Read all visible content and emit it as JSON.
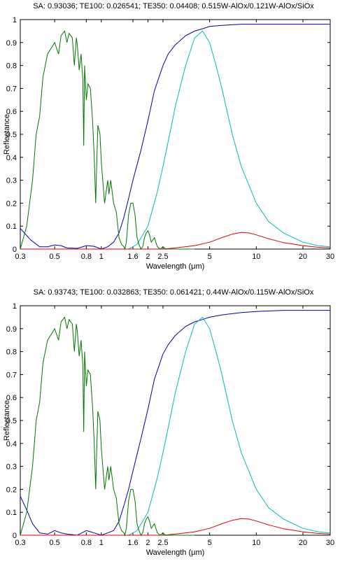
{
  "chart_data": [
    {
      "type": "line",
      "title": "SA: 0.93036; TE100: 0.026541; TE350: 0.04408; 0.515W-AlOx/0.121W-AlOx/SiOx",
      "xlabel": "Wavelength (μm)",
      "ylabel": "Reflectance",
      "xscale": "log",
      "xlim": [
        0.3,
        30
      ],
      "ylim": [
        0,
        1
      ],
      "xticks": [
        0.3,
        0.5,
        0.8,
        1,
        1.6,
        2,
        2.5,
        5,
        10,
        20,
        30
      ],
      "xticklabels": [
        "0.3",
        "0.5",
        "0.8",
        "1",
        "1.6",
        "2",
        "2.5",
        "5",
        "10",
        "20",
        "30"
      ],
      "yticks": [
        0,
        0.1,
        0.2,
        0.3,
        0.4,
        0.5,
        0.6,
        0.7,
        0.8,
        0.9,
        1
      ],
      "yticklabels": [
        "0",
        "0.1",
        "0.2",
        "0.3",
        "0.4",
        "0.5",
        "0.6",
        "0.7",
        "0.8",
        "0.9",
        "1"
      ],
      "grid": false,
      "series": [
        {
          "color": "#0000aa",
          "x": [
            0.3,
            0.35,
            0.4,
            0.45,
            0.5,
            0.55,
            0.6,
            0.7,
            0.8,
            0.9,
            1.0,
            1.1,
            1.2,
            1.3,
            1.4,
            1.5,
            1.6,
            1.8,
            2.0,
            2.2,
            2.5,
            2.7,
            3.0,
            3.5,
            4.0,
            4.5,
            5.0,
            6.0,
            8.0,
            10.0,
            15.0,
            20.0,
            30.0
          ],
          "y": [
            0.09,
            0.04,
            0.01,
            0.01,
            0.018,
            0.015,
            0.005,
            0.003,
            0.015,
            0.012,
            0.0,
            0.01,
            0.03,
            0.07,
            0.14,
            0.22,
            0.3,
            0.43,
            0.56,
            0.69,
            0.8,
            0.85,
            0.89,
            0.93,
            0.95,
            0.96,
            0.97,
            0.975,
            0.98,
            0.98,
            0.98,
            0.98,
            0.98
          ]
        },
        {
          "color": "#00bbbb",
          "x": [
            0.3,
            1.5,
            1.7,
            2.0,
            2.3,
            2.5,
            2.8,
            3.0,
            3.5,
            4.0,
            4.5,
            5.0,
            5.5,
            6.0,
            7.0,
            8.0,
            10.0,
            12.0,
            15.0,
            20.0,
            25.0,
            30.0
          ],
          "y": [
            0.0,
            0.0,
            0.02,
            0.1,
            0.25,
            0.36,
            0.52,
            0.62,
            0.8,
            0.92,
            0.95,
            0.9,
            0.8,
            0.7,
            0.5,
            0.36,
            0.2,
            0.12,
            0.07,
            0.03,
            0.015,
            0.01
          ]
        },
        {
          "color": "#dd0000",
          "x": [
            0.3,
            2.5,
            3.0,
            4.0,
            5.0,
            6.0,
            7.0,
            8.0,
            9.0,
            10.0,
            12.0,
            15.0,
            20.0,
            25.0,
            30.0
          ],
          "y": [
            0.0,
            0.0,
            0.005,
            0.015,
            0.03,
            0.05,
            0.065,
            0.073,
            0.07,
            0.062,
            0.045,
            0.028,
            0.015,
            0.008,
            0.005
          ]
        },
        {
          "color": "#007700",
          "x": [
            0.3,
            0.33,
            0.36,
            0.38,
            0.4,
            0.42,
            0.45,
            0.48,
            0.5,
            0.53,
            0.55,
            0.58,
            0.6,
            0.62,
            0.65,
            0.67,
            0.69,
            0.7,
            0.72,
            0.74,
            0.76,
            0.77,
            0.78,
            0.8,
            0.82,
            0.85,
            0.88,
            0.9,
            0.92,
            0.93,
            0.95,
            0.98,
            1.0,
            1.05,
            1.1,
            1.12,
            1.15,
            1.2,
            1.25,
            1.3,
            1.35,
            1.4,
            1.42,
            1.45,
            1.5,
            1.55,
            1.6,
            1.65,
            1.7,
            1.75,
            1.8,
            1.85,
            1.9,
            1.95,
            2.0,
            2.05,
            2.1,
            2.2,
            2.3,
            2.4,
            2.5,
            2.6,
            3.0,
            4.0
          ],
          "y": [
            0.0,
            0.1,
            0.3,
            0.5,
            0.58,
            0.75,
            0.85,
            0.88,
            0.9,
            0.85,
            0.93,
            0.95,
            0.9,
            0.94,
            0.92,
            0.8,
            0.92,
            0.89,
            0.78,
            0.85,
            0.74,
            0.45,
            0.8,
            0.65,
            0.72,
            0.7,
            0.55,
            0.4,
            0.2,
            0.32,
            0.54,
            0.5,
            0.38,
            0.2,
            0.3,
            0.24,
            0.3,
            0.2,
            0.16,
            0.05,
            0.02,
            0.01,
            0.0,
            0.03,
            0.15,
            0.2,
            0.2,
            0.15,
            0.05,
            0.02,
            0.0,
            0.01,
            0.05,
            0.07,
            0.08,
            0.06,
            0.03,
            0.05,
            0.01,
            0.0,
            0.01,
            0.0,
            0.0,
            0.0
          ]
        }
      ]
    },
    {
      "type": "line",
      "title": "SA: 0.93743; TE100: 0.032863; TE350: 0.061421; 0.44W-AlOx/0.115W-AlOx/SiOx",
      "xlabel": "Wavelength (μm)",
      "ylabel": "Reflectance",
      "xscale": "log",
      "xlim": [
        0.3,
        30
      ],
      "ylim": [
        0,
        1
      ],
      "xticks": [
        0.3,
        0.5,
        0.8,
        1,
        1.6,
        2,
        2.5,
        5,
        10,
        20,
        30
      ],
      "xticklabels": [
        "0.3",
        "0.5",
        "0.8",
        "1",
        "1.6",
        "2",
        "2.5",
        "5",
        "10",
        "20",
        "30"
      ],
      "yticks": [
        0,
        0.1,
        0.2,
        0.3,
        0.4,
        0.5,
        0.6,
        0.7,
        0.8,
        0.9,
        1
      ],
      "yticklabels": [
        "0",
        "0.1",
        "0.2",
        "0.3",
        "0.4",
        "0.5",
        "0.6",
        "0.7",
        "0.8",
        "0.9",
        "1"
      ],
      "grid": false,
      "series": [
        {
          "color": "#0000aa",
          "x": [
            0.3,
            0.33,
            0.36,
            0.4,
            0.45,
            0.5,
            0.55,
            0.6,
            0.7,
            0.8,
            0.9,
            1.0,
            1.1,
            1.2,
            1.3,
            1.4,
            1.5,
            1.6,
            1.8,
            2.0,
            2.2,
            2.5,
            2.7,
            3.0,
            3.5,
            4.0,
            4.5,
            5.0,
            6.0,
            8.0,
            10.0,
            15.0,
            20.0,
            30.0
          ],
          "y": [
            0.17,
            0.11,
            0.05,
            0.01,
            0.005,
            0.02,
            0.01,
            0.005,
            0.0,
            0.02,
            0.01,
            0.0,
            0.01,
            0.02,
            0.06,
            0.13,
            0.2,
            0.28,
            0.42,
            0.55,
            0.68,
            0.79,
            0.83,
            0.87,
            0.91,
            0.93,
            0.94,
            0.95,
            0.96,
            0.97,
            0.975,
            0.98,
            0.98,
            0.98
          ]
        },
        {
          "color": "#00bbbb",
          "x": [
            0.3,
            1.5,
            1.7,
            2.0,
            2.3,
            2.5,
            2.8,
            3.0,
            3.5,
            4.0,
            4.5,
            5.0,
            5.5,
            6.0,
            7.0,
            8.0,
            10.0,
            12.0,
            15.0,
            20.0,
            25.0,
            30.0
          ],
          "y": [
            0.0,
            0.0,
            0.02,
            0.1,
            0.25,
            0.36,
            0.52,
            0.62,
            0.8,
            0.92,
            0.95,
            0.9,
            0.8,
            0.7,
            0.5,
            0.36,
            0.2,
            0.12,
            0.07,
            0.03,
            0.015,
            0.01
          ]
        },
        {
          "color": "#dd0000",
          "x": [
            0.3,
            2.5,
            3.0,
            4.0,
            5.0,
            6.0,
            7.0,
            8.0,
            9.0,
            10.0,
            12.0,
            15.0,
            20.0,
            25.0,
            30.0
          ],
          "y": [
            0.0,
            0.0,
            0.005,
            0.015,
            0.03,
            0.05,
            0.065,
            0.073,
            0.07,
            0.062,
            0.045,
            0.028,
            0.015,
            0.008,
            0.005
          ]
        },
        {
          "color": "#007700",
          "x": [
            0.3,
            0.33,
            0.36,
            0.38,
            0.4,
            0.42,
            0.45,
            0.48,
            0.5,
            0.53,
            0.55,
            0.58,
            0.6,
            0.62,
            0.65,
            0.67,
            0.69,
            0.7,
            0.72,
            0.74,
            0.76,
            0.77,
            0.78,
            0.8,
            0.82,
            0.85,
            0.88,
            0.9,
            0.92,
            0.93,
            0.95,
            0.98,
            1.0,
            1.05,
            1.1,
            1.12,
            1.15,
            1.2,
            1.25,
            1.3,
            1.35,
            1.4,
            1.42,
            1.45,
            1.5,
            1.55,
            1.6,
            1.65,
            1.7,
            1.75,
            1.8,
            1.85,
            1.9,
            1.95,
            2.0,
            2.05,
            2.1,
            2.2,
            2.3,
            2.4,
            2.5,
            2.6,
            3.0,
            4.0
          ],
          "y": [
            0.0,
            0.1,
            0.3,
            0.5,
            0.58,
            0.75,
            0.85,
            0.88,
            0.9,
            0.85,
            0.93,
            0.95,
            0.9,
            0.94,
            0.92,
            0.8,
            0.92,
            0.89,
            0.78,
            0.85,
            0.74,
            0.45,
            0.8,
            0.65,
            0.72,
            0.7,
            0.55,
            0.4,
            0.2,
            0.32,
            0.54,
            0.5,
            0.38,
            0.2,
            0.3,
            0.24,
            0.3,
            0.2,
            0.16,
            0.05,
            0.02,
            0.01,
            0.0,
            0.03,
            0.15,
            0.2,
            0.2,
            0.15,
            0.05,
            0.02,
            0.0,
            0.01,
            0.05,
            0.07,
            0.08,
            0.06,
            0.03,
            0.05,
            0.01,
            0.0,
            0.01,
            0.0,
            0.0,
            0.0
          ]
        }
      ]
    }
  ]
}
